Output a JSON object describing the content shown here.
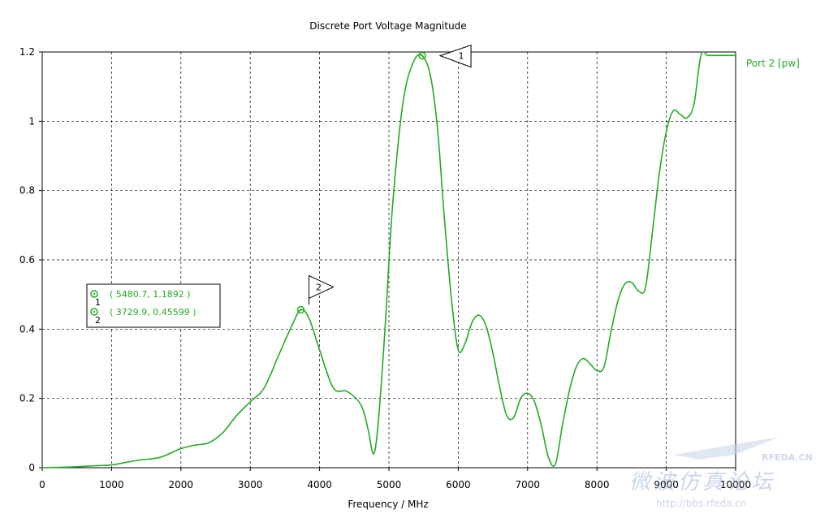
{
  "chart_data": {
    "type": "line",
    "title": "Discrete Port Voltage Magnitude",
    "xlabel": "Frequency / MHz",
    "ylabel": "",
    "xlim": [
      0,
      10000
    ],
    "ylim": [
      0,
      1.2
    ],
    "xticks": [
      0,
      1000,
      2000,
      3000,
      4000,
      5000,
      6000,
      7000,
      8000,
      9000,
      10000
    ],
    "yticks": [
      0,
      0.2,
      0.4,
      0.6,
      0.8,
      1,
      1.2
    ],
    "xtick_labels": [
      "0",
      "1000",
      "2000",
      "3000",
      "4000",
      "5000",
      "6000",
      "7000",
      "8000",
      "9000",
      "10000"
    ],
    "ytick_labels": [
      "0",
      "0.2",
      "0.4",
      "0.6",
      "0.8",
      "1",
      "1.2"
    ],
    "grid": true,
    "legend_position": "right",
    "series": [
      {
        "name": "Port 2 [pw]",
        "color": "#22aa22",
        "x": [
          0,
          400,
          600,
          800,
          1000,
          1200,
          1400,
          1700,
          2000,
          2200,
          2400,
          2600,
          2800,
          3000,
          3200,
          3400,
          3600,
          3730,
          3850,
          4000,
          4200,
          4400,
          4600,
          4700,
          4780,
          4850,
          4950,
          5050,
          5200,
          5350,
          5480,
          5600,
          5700,
          5800,
          5900,
          6000,
          6100,
          6200,
          6300,
          6400,
          6500,
          6600,
          6700,
          6800,
          6900,
          7000,
          7100,
          7200,
          7300,
          7400,
          7500,
          7600,
          7700,
          7800,
          7900,
          8000,
          8100,
          8200,
          8300,
          8400,
          8500,
          8600,
          8700,
          8800,
          8900,
          9000,
          9100,
          9200,
          9300,
          9400,
          9500,
          9600,
          9700,
          9800,
          9900,
          10000
        ],
        "y": [
          0,
          0.002,
          0.004,
          0.006,
          0.008,
          0.015,
          0.022,
          0.03,
          0.055,
          0.065,
          0.072,
          0.1,
          0.15,
          0.19,
          0.23,
          0.32,
          0.41,
          0.456,
          0.43,
          0.34,
          0.23,
          0.22,
          0.18,
          0.11,
          0.04,
          0.14,
          0.42,
          0.75,
          1.05,
          1.17,
          1.1892,
          1.13,
          0.98,
          0.72,
          0.49,
          0.34,
          0.36,
          0.42,
          0.44,
          0.41,
          0.33,
          0.23,
          0.15,
          0.145,
          0.2,
          0.215,
          0.19,
          0.12,
          0.03,
          0.01,
          0.12,
          0.22,
          0.29,
          0.315,
          0.3,
          0.28,
          0.29,
          0.39,
          0.48,
          0.53,
          0.535,
          0.51,
          0.52,
          0.68,
          0.85,
          0.97,
          1.03,
          1.02,
          1.01,
          1.05,
          1.19,
          1.19,
          1.19,
          1.19,
          1.19,
          1.19
        ]
      }
    ],
    "markers": [
      {
        "id": "1",
        "x": 5480.7,
        "y": 1.1892,
        "label": "( 5480.7, 1.1892 )"
      },
      {
        "id": "2",
        "x": 3729.9,
        "y": 0.45599,
        "label": "( 3729.9, 0.45599 )"
      }
    ]
  },
  "watermark": {
    "line1": "RFEDA.CN",
    "line2": "微波仿真论坛",
    "url": "http://bbs.rfeda.cn"
  }
}
